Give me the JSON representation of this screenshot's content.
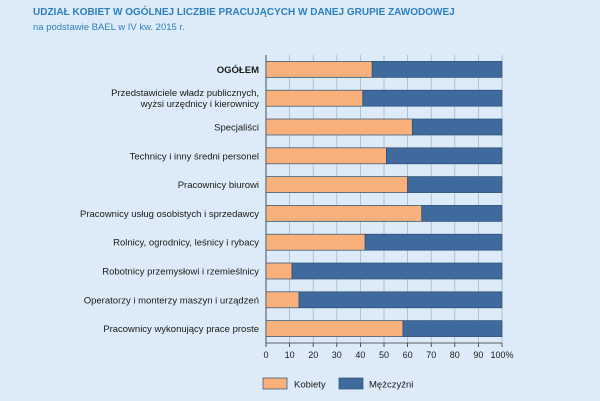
{
  "title": "UDZIAŁ KOBIET W OGÓLNEJ LICZBIE PRACUJĄCYCH W DANEJ GRUPIE ZAWODOWEJ",
  "subtitle": "na podstawie BAEL w IV kw. 2015 r.",
  "colors": {
    "kobiety": "#f9b07a",
    "mezczyzni": "#3e6a9e",
    "background": "#dcebf7",
    "grid": "#9fb9d3"
  },
  "chart_data": {
    "type": "bar",
    "orientation": "horizontal",
    "stacked": true,
    "categories": [
      [
        "OGÓŁEM"
      ],
      [
        "Przedstawiciele władz publicznych,",
        "wyżsi urzędnicy i kierownicy"
      ],
      [
        "Specjaliści"
      ],
      [
        "Technicy i inny średni personel"
      ],
      [
        "Pracownicy biurowi"
      ],
      [
        "Pracownicy usług osobistych i sprzedawcy"
      ],
      [
        "Rolnicy, ogrodnicy, leśnicy i rybacy"
      ],
      [
        "Robotnicy przemysłowi i rzemieślnicy"
      ],
      [
        "Operatorzy i monterzy maszyn i urządzeń"
      ],
      [
        "Pracownicy wykonujący prace proste"
      ]
    ],
    "bold_category_index": 0,
    "series": [
      {
        "name": "Kobiety",
        "values": [
          45,
          41,
          62,
          51,
          60,
          66,
          42,
          11,
          14,
          58
        ]
      },
      {
        "name": "Mężczyźni",
        "values": [
          55,
          59,
          38,
          49,
          40,
          34,
          58,
          89,
          86,
          42
        ]
      }
    ],
    "xlim": [
      0,
      100
    ],
    "xticks": [
      "0",
      "10",
      "20",
      "30",
      "40",
      "50",
      "60",
      "70",
      "80",
      "90",
      "100%"
    ],
    "grid": true,
    "legend_position": "bottom"
  }
}
